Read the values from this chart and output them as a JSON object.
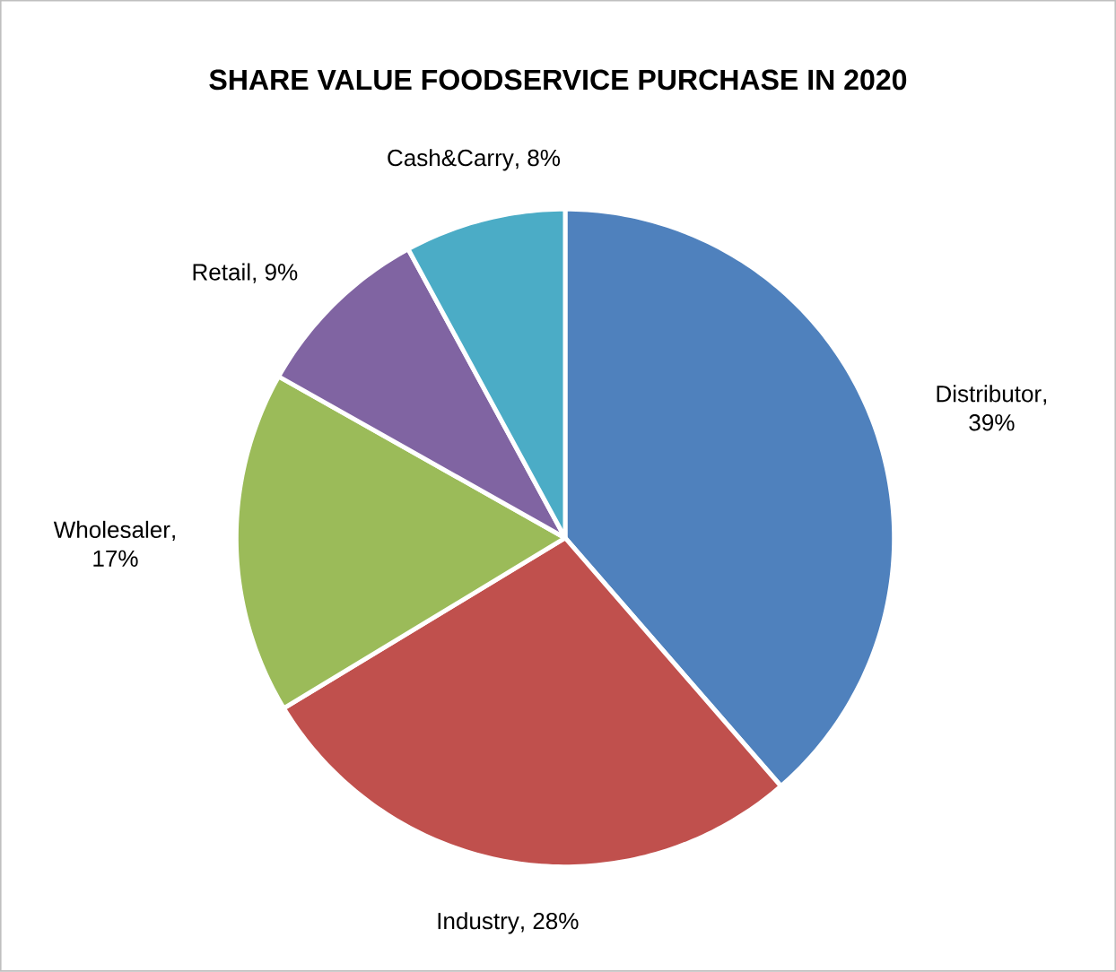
{
  "chart_data": {
    "type": "pie",
    "title": "SHARE VALUE FOODSERVICE PURCHASE IN 2020",
    "categories": [
      "Distributor",
      "Industry",
      "Wholesaler",
      "Retail",
      "Cash&Carry"
    ],
    "values": [
      39,
      28,
      17,
      9,
      8
    ],
    "colors": [
      "#4f81bd",
      "#c0504d",
      "#9bbb59",
      "#8064a2",
      "#4bacc6"
    ],
    "value_labels": [
      ", 39%",
      ", 28%",
      ", 17%",
      ", 9%",
      ", 8%"
    ]
  }
}
